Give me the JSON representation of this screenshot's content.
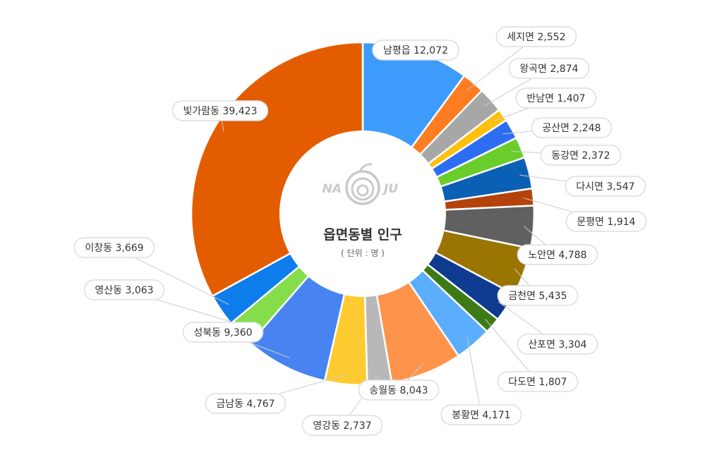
{
  "chart_data": {
    "type": "pie",
    "title": "읍면동별 인구",
    "unit_label": "( 단위 : 명 )",
    "logo": {
      "left": "NA",
      "right": "JU"
    },
    "slices": [
      {
        "name": "남평읍",
        "value": 12072,
        "value_label": "12,072",
        "color": "#3d9bfb"
      },
      {
        "name": "세지면",
        "value": 2552,
        "value_label": "2,552",
        "color": "#fe7d22"
      },
      {
        "name": "왕곡면",
        "value": 2874,
        "value_label": "2,874",
        "color": "#a7a7a7"
      },
      {
        "name": "반남면",
        "value": 1407,
        "value_label": "1,407",
        "color": "#fdc00d"
      },
      {
        "name": "공산면",
        "value": 2248,
        "value_label": "2,248",
        "color": "#2c6ef2"
      },
      {
        "name": "동강면",
        "value": 2372,
        "value_label": "2,372",
        "color": "#6bcd2b"
      },
      {
        "name": "다시면",
        "value": 3547,
        "value_label": "3,547",
        "color": "#0b5fb4"
      },
      {
        "name": "문평면",
        "value": 1914,
        "value_label": "1,914",
        "color": "#b3430a"
      },
      {
        "name": "노안면",
        "value": 4788,
        "value_label": "4,788",
        "color": "#606060"
      },
      {
        "name": "금천면",
        "value": 5435,
        "value_label": "5,435",
        "color": "#9a7502"
      },
      {
        "name": "산포면",
        "value": 3304,
        "value_label": "3,304",
        "color": "#0e3a8f"
      },
      {
        "name": "다도면",
        "value": 1807,
        "value_label": "1,807",
        "color": "#3c7a17"
      },
      {
        "name": "봉황면",
        "value": 4171,
        "value_label": "4,171",
        "color": "#5aaefb"
      },
      {
        "name": "송월동",
        "value": 8043,
        "value_label": "8,043",
        "color": "#fe944c"
      },
      {
        "name": "영강동",
        "value": 2737,
        "value_label": "2,737",
        "color": "#b8b8b8"
      },
      {
        "name": "금남동",
        "value": 4767,
        "value_label": "4,767",
        "color": "#fecb30"
      },
      {
        "name": "성북동",
        "value": 9360,
        "value_label": "9,360",
        "color": "#4784f1"
      },
      {
        "name": "영산동",
        "value": 3063,
        "value_label": "3,063",
        "color": "#86dd4c"
      },
      {
        "name": "이창동",
        "value": 3669,
        "value_label": "3,669",
        "color": "#0d7dec"
      },
      {
        "name": "빛가람동",
        "value": 39423,
        "value_label": "39,423",
        "color": "#e35d00"
      }
    ]
  }
}
